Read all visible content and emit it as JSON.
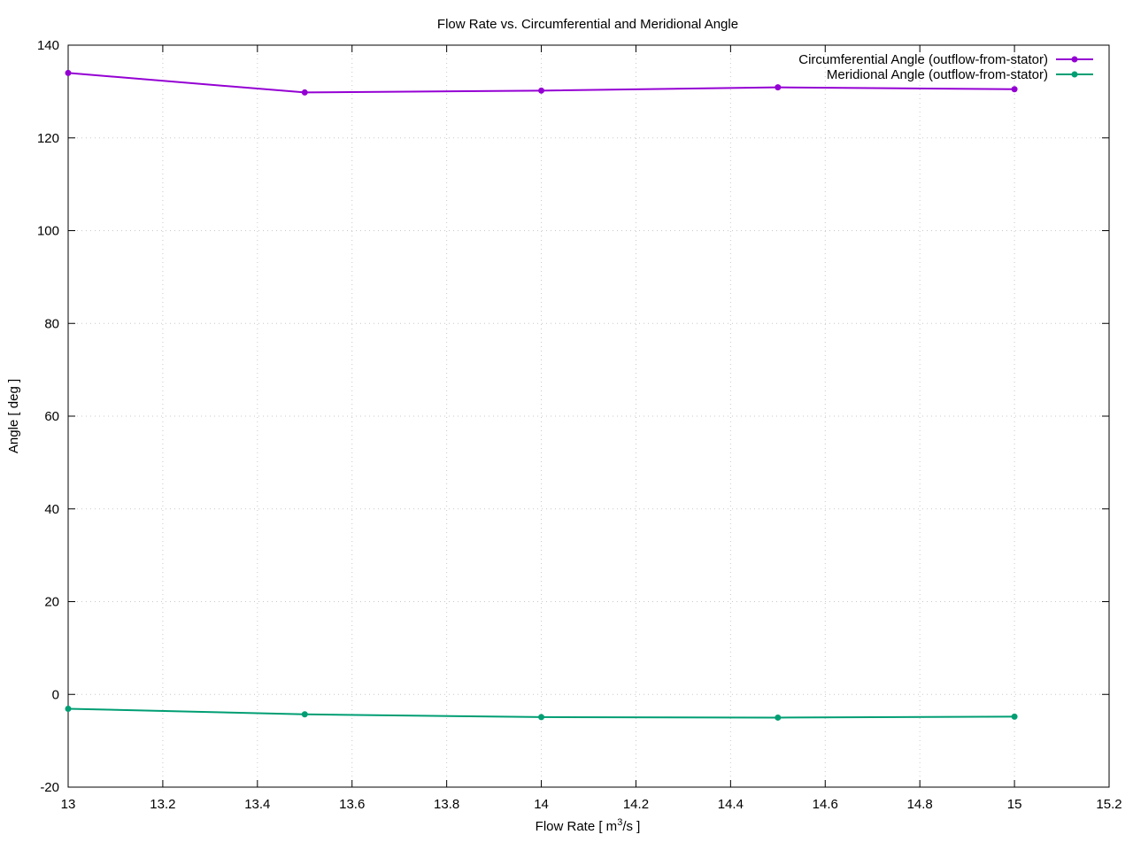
{
  "chart_data": {
    "type": "line",
    "title": "Flow Rate vs. Circumferential and Meridional Angle",
    "xlabel_main": "Flow Rate [ m",
    "xlabel_sup": "3",
    "xlabel_tail": "/s ]",
    "ylabel": "Angle [ deg ]",
    "xlim": [
      13,
      15.2
    ],
    "ylim": [
      -20,
      140
    ],
    "xticks": [
      13,
      13.2,
      13.4,
      13.6,
      13.8,
      14,
      14.2,
      14.4,
      14.6,
      14.8,
      15,
      15.2
    ],
    "xtick_labels": [
      "13",
      "13.2",
      "13.4",
      "13.6",
      "13.8",
      "14",
      "14.2",
      "14.4",
      "14.6",
      "14.8",
      "15",
      "15.2"
    ],
    "yticks": [
      -20,
      0,
      20,
      40,
      60,
      80,
      100,
      120,
      140
    ],
    "ytick_labels": [
      "-20",
      "0",
      "20",
      "40",
      "60",
      "80",
      "100",
      "120",
      "140"
    ],
    "grid": true,
    "legend_position": "top-right",
    "x": [
      13,
      13.5,
      14,
      14.5,
      15
    ],
    "series": [
      {
        "name": "Circumferential Angle (outflow-from-stator)",
        "color": "#9400d3",
        "values": [
          134.0,
          129.8,
          130.2,
          130.9,
          130.5
        ]
      },
      {
        "name": "Meridional Angle (outflow-from-stator)",
        "color": "#009e73",
        "values": [
          -3.1,
          -4.3,
          -4.9,
          -5.0,
          -4.8
        ]
      }
    ]
  }
}
